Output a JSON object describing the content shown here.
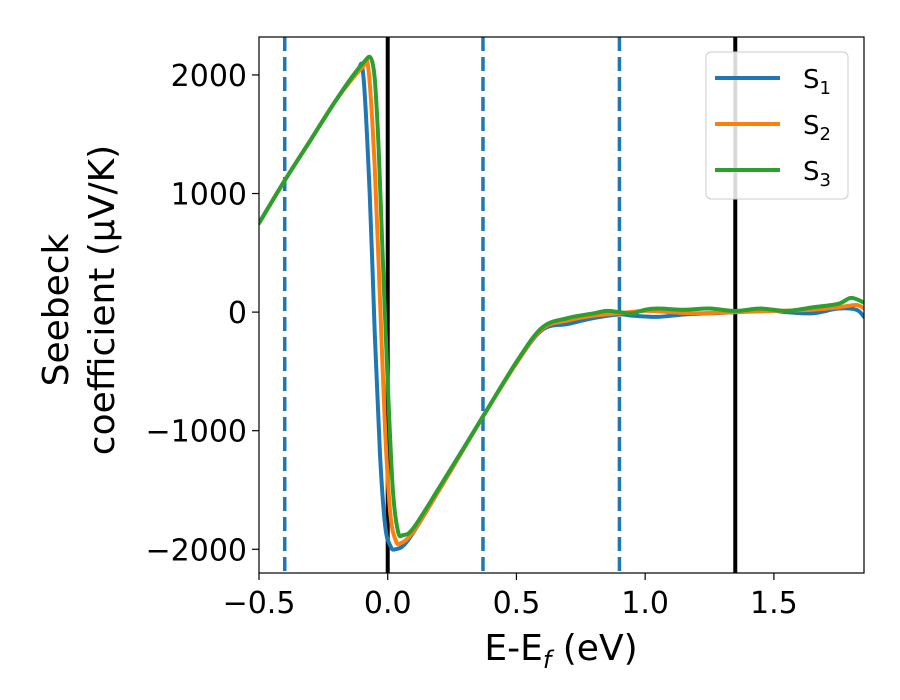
{
  "chart_data": {
    "type": "line",
    "title": "",
    "xlabel": {
      "base": "E-E",
      "sub": "f",
      "suffix": " (eV)"
    },
    "ylabel_line1": "Seebeck",
    "ylabel_line2": "coefficient  (μV/K)",
    "xlim": [
      -0.5,
      1.85
    ],
    "ylim": [
      -2200,
      2320
    ],
    "x_ticks": [
      -0.5,
      0.0,
      0.5,
      1.0,
      1.5
    ],
    "x_tick_labels": [
      "−0.5",
      "0.0",
      "0.5",
      "1.0",
      "1.5"
    ],
    "y_ticks": [
      2000,
      1000,
      0,
      -1000,
      -2000
    ],
    "y_tick_labels": [
      "2000",
      "1000",
      "0",
      "−1000",
      "−2000"
    ],
    "grid": false,
    "legend_position": "top-right",
    "vlines": [
      {
        "x": -0.4,
        "style": "dashed",
        "color": "#1f77b4"
      },
      {
        "x": 0.0,
        "style": "solid",
        "color": "#000000"
      },
      {
        "x": 0.37,
        "style": "dashed",
        "color": "#1f77b4"
      },
      {
        "x": 0.9,
        "style": "dashed",
        "color": "#1f77b4"
      },
      {
        "x": 1.35,
        "style": "solid",
        "color": "#000000"
      }
    ],
    "series": [
      {
        "name": "S",
        "sub": "1",
        "color": "#1f77b4",
        "points": [
          [
            -0.5,
            750
          ],
          [
            -0.4,
            1110
          ],
          [
            -0.3,
            1450
          ],
          [
            -0.2,
            1790
          ],
          [
            -0.12,
            2030
          ],
          [
            -0.095,
            2000
          ],
          [
            -0.07,
            1000
          ],
          [
            -0.05,
            -200
          ],
          [
            -0.03,
            -1200
          ],
          [
            -0.01,
            -1800
          ],
          [
            0.01,
            -1970
          ],
          [
            0.03,
            -2000
          ],
          [
            0.08,
            -1920
          ],
          [
            0.2,
            -1500
          ],
          [
            0.37,
            -880
          ],
          [
            0.5,
            -430
          ],
          [
            0.6,
            -150
          ],
          [
            0.7,
            -100
          ],
          [
            0.8,
            -50
          ],
          [
            0.9,
            -20
          ],
          [
            0.95,
            -30
          ],
          [
            1.05,
            -40
          ],
          [
            1.15,
            -20
          ],
          [
            1.25,
            -10
          ],
          [
            1.35,
            0
          ],
          [
            1.45,
            20
          ],
          [
            1.55,
            0
          ],
          [
            1.65,
            -10
          ],
          [
            1.75,
            30
          ],
          [
            1.82,
            20
          ],
          [
            1.85,
            -40
          ]
        ]
      },
      {
        "name": "S",
        "sub": "2",
        "color": "#ff7f0e",
        "points": [
          [
            -0.5,
            750
          ],
          [
            -0.4,
            1110
          ],
          [
            -0.3,
            1450
          ],
          [
            -0.2,
            1790
          ],
          [
            -0.1,
            2060
          ],
          [
            -0.075,
            2050
          ],
          [
            -0.05,
            1200
          ],
          [
            -0.03,
            100
          ],
          [
            -0.01,
            -1000
          ],
          [
            0.01,
            -1700
          ],
          [
            0.03,
            -1920
          ],
          [
            0.05,
            -1950
          ],
          [
            0.1,
            -1850
          ],
          [
            0.2,
            -1500
          ],
          [
            0.37,
            -880
          ],
          [
            0.5,
            -430
          ],
          [
            0.6,
            -140
          ],
          [
            0.7,
            -70
          ],
          [
            0.8,
            -30
          ],
          [
            0.9,
            -10
          ],
          [
            1.0,
            10
          ],
          [
            1.1,
            0
          ],
          [
            1.2,
            -10
          ],
          [
            1.35,
            0
          ],
          [
            1.5,
            10
          ],
          [
            1.65,
            20
          ],
          [
            1.75,
            40
          ],
          [
            1.82,
            60
          ],
          [
            1.85,
            30
          ]
        ]
      },
      {
        "name": "S",
        "sub": "3",
        "color": "#2ca02c",
        "points": [
          [
            -0.5,
            750
          ],
          [
            -0.4,
            1110
          ],
          [
            -0.3,
            1450
          ],
          [
            -0.2,
            1790
          ],
          [
            -0.1,
            2090
          ],
          [
            -0.06,
            2110
          ],
          [
            -0.04,
            1600
          ],
          [
            -0.02,
            500
          ],
          [
            0.0,
            -600
          ],
          [
            0.02,
            -1500
          ],
          [
            0.04,
            -1850
          ],
          [
            0.06,
            -1880
          ],
          [
            0.1,
            -1820
          ],
          [
            0.2,
            -1480
          ],
          [
            0.37,
            -880
          ],
          [
            0.5,
            -420
          ],
          [
            0.6,
            -130
          ],
          [
            0.7,
            -50
          ],
          [
            0.8,
            -10
          ],
          [
            0.85,
            10
          ],
          [
            0.9,
            0
          ],
          [
            0.95,
            -10
          ],
          [
            1.0,
            20
          ],
          [
            1.05,
            30
          ],
          [
            1.15,
            20
          ],
          [
            1.25,
            30
          ],
          [
            1.35,
            10
          ],
          [
            1.45,
            30
          ],
          [
            1.55,
            10
          ],
          [
            1.65,
            40
          ],
          [
            1.75,
            70
          ],
          [
            1.8,
            120
          ],
          [
            1.85,
            80
          ]
        ]
      }
    ]
  }
}
